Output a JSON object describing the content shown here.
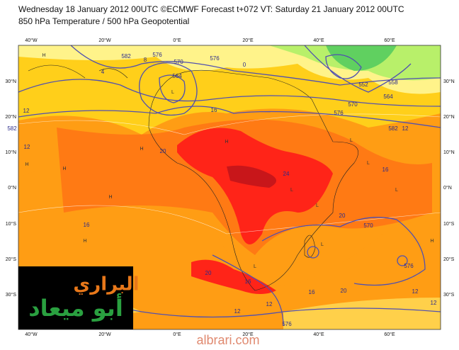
{
  "header": {
    "title": "Wednesday 18 January 2012 00UTC ©ECMWF Forecast t+072 VT: Saturday 21 January 2012 00UTC",
    "subtitle": "850 hPa Temperature / 500 hPa Geopotential"
  },
  "map": {
    "longitude_labels": [
      "40°W",
      "20°W",
      "0°E",
      "20°E",
      "40°E",
      "60°E"
    ],
    "latitude_labels": [
      "30°N",
      "20°N",
      "10°N",
      "0°N",
      "10°S",
      "20°S",
      "30°S"
    ],
    "contour_labels": [
      "582",
      "576",
      "570",
      "564",
      "576",
      "552",
      "558",
      "564",
      "570",
      "576",
      "582",
      "12",
      "16",
      "20",
      "24",
      "20",
      "16",
      "12",
      "8",
      "4",
      "0",
      "12",
      "16",
      "20",
      "16",
      "12",
      "16",
      "20",
      "12",
      "582",
      "576",
      "570",
      "576",
      "12",
      "12"
    ],
    "pressure_marks": [
      "H",
      "L",
      "H",
      "L",
      "H",
      "L",
      "H",
      "L",
      "H",
      "L",
      "H",
      "L",
      "H",
      "L",
      "H",
      "L"
    ]
  },
  "logo": {
    "line1": "البراري",
    "line2": "أبو ميعاد"
  },
  "watermark": "albrari.com"
}
